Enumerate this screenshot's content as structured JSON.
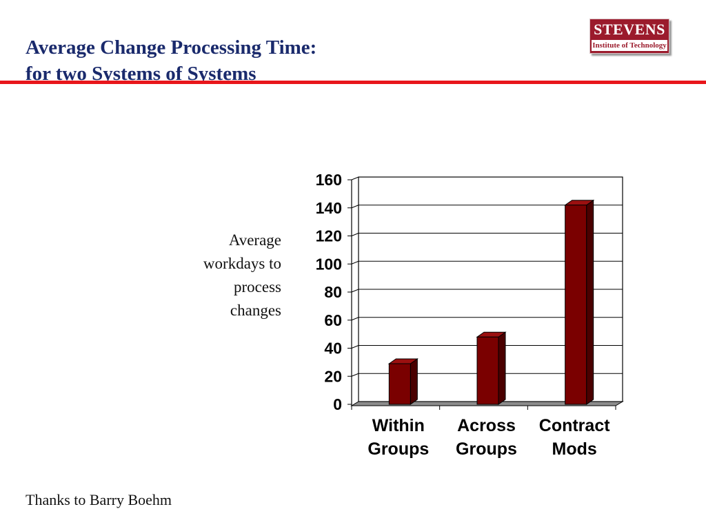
{
  "slide": {
    "title_lines": [
      "Average Change Processing Time:",
      "for two Systems of Systems"
    ],
    "footer": "Thanks to Barry Boehm"
  },
  "logo": {
    "wordmark": "STEVENS",
    "tagline": "Institute of Technology",
    "color": "#9b1b2c"
  },
  "colors": {
    "title": "#1a2a6c",
    "rule": "#e8161b",
    "bar_front": "#7a0000",
    "bar_side": "#4a0000",
    "bar_top": "#9b1010"
  },
  "chart_data": {
    "type": "bar",
    "categories": [
      [
        "Within",
        "Groups"
      ],
      [
        "Across",
        "Groups"
      ],
      [
        "Contract",
        "Mods"
      ]
    ],
    "values": [
      27,
      46,
      140
    ],
    "ylabel_lines": [
      "Average",
      "workdays to",
      "process",
      "changes"
    ],
    "ylim": [
      0,
      160
    ],
    "yticks": [
      0,
      20,
      40,
      60,
      80,
      100,
      120,
      140,
      160
    ],
    "grid": true,
    "legend": "none",
    "style": "3d"
  }
}
